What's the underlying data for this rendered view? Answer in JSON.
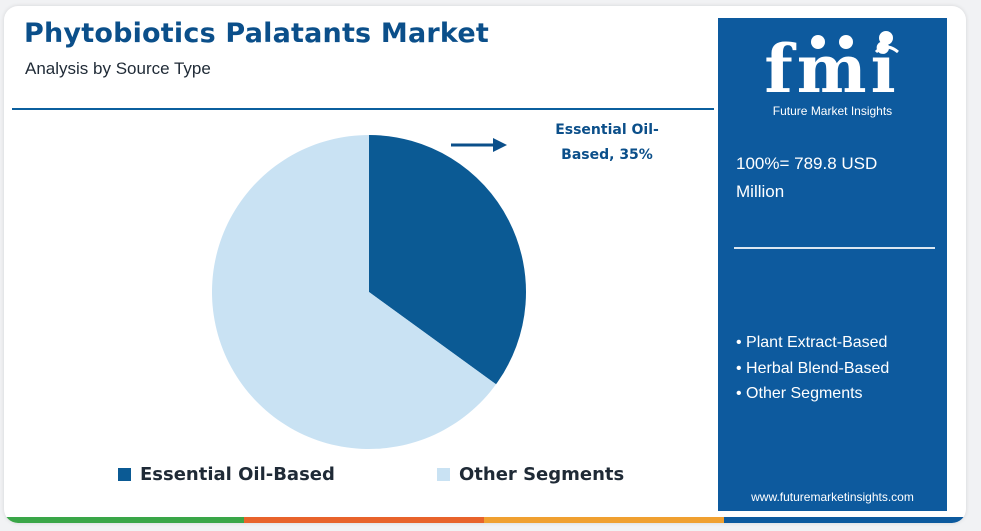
{
  "header": {
    "title": "Phytobiotics Palatants Market",
    "subtitle": "Analysis by Source Type"
  },
  "chart_data": {
    "type": "pie",
    "title": "Phytobiotics Palatants Market",
    "subtitle": "Analysis by Source Type",
    "slices": [
      {
        "label": "Essential Oil-Based",
        "value": 35,
        "color": "#0b5a94"
      },
      {
        "label": "Other Segments",
        "value": 65,
        "color": "#c9e2f3"
      }
    ],
    "annotation": {
      "line1": "Essential Oil-",
      "line2": "Based, 35%"
    },
    "legend": {
      "position": "bottom",
      "entries": [
        "Essential Oil-Based",
        "Other Segments"
      ]
    }
  },
  "sidebar": {
    "logo_text": "fmi",
    "logo_tagline": "Future Market Insights",
    "total_line1": "100%= 789.8 USD",
    "total_line2": "Million",
    "segments": [
      "• Plant Extract-Based",
      "• Herbal Blend-Based",
      "• Other Segments"
    ],
    "website": "www.futuremarketinsights.com"
  },
  "colors": {
    "brand_blue": "#0b4f8a",
    "sidebar_bg": "#0d5a9e",
    "stripe": [
      "#3aa648",
      "#e8632b",
      "#f0a030",
      "#0d5a9e"
    ]
  }
}
